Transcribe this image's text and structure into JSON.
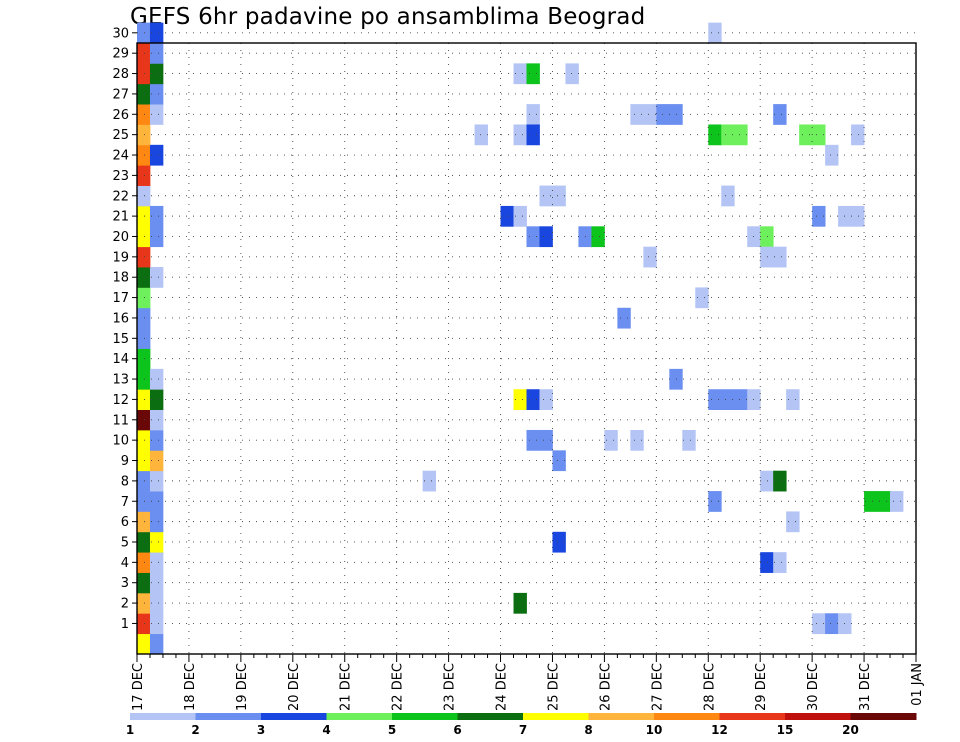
{
  "chart_data": {
    "type": "heatmap",
    "title": "GEFS 6hr padavine po ansamblima Beograd",
    "xlabel": "",
    "ylabel": "",
    "x_ticks": [
      "17 DEC",
      "18 DEC",
      "19 DEC",
      "20 DEC",
      "21 DEC",
      "22 DEC",
      "23 DEC",
      "24 DEC",
      "25 DEC",
      "26 DEC",
      "27 DEC",
      "28 DEC",
      "29 DEC",
      "30 DEC",
      "31 DEC",
      "01 JAN"
    ],
    "y_ticks": [
      "1",
      "2",
      "3",
      "4",
      "5",
      "6",
      "7",
      "8",
      "9",
      "10",
      "11",
      "12",
      "13",
      "14",
      "15",
      "16",
      "17",
      "18",
      "19",
      "20",
      "21",
      "22",
      "23",
      "24",
      "25",
      "26",
      "27",
      "28",
      "29",
      "30"
    ],
    "xlim": [
      0,
      60
    ],
    "ylim": [
      0,
      30
    ],
    "x_step_hours": 6,
    "grid": true,
    "colorbar": {
      "labels": [
        "1",
        "2",
        "3",
        "4",
        "5",
        "6",
        "7",
        "8",
        "10",
        "12",
        "15",
        "20"
      ],
      "colors": [
        "#b4c5f5",
        "#6b8ff0",
        "#1a46e0",
        "#6ef05c",
        "#0dc41c",
        "#0b6e10",
        "#ffff00",
        "#ffb43c",
        "#ff8812",
        "#e8361a",
        "#c0100e",
        "#6a0808"
      ]
    },
    "cells": [
      {
        "x": 0,
        "y": 0,
        "v": 7
      },
      {
        "x": 1,
        "y": 0,
        "v": 2
      },
      {
        "x": 0,
        "y": 1,
        "v": 13
      },
      {
        "x": 1,
        "y": 1,
        "v": 1
      },
      {
        "x": 0,
        "y": 2,
        "v": 9
      },
      {
        "x": 1,
        "y": 2,
        "v": 1
      },
      {
        "x": 0,
        "y": 3,
        "v": 6
      },
      {
        "x": 1,
        "y": 3,
        "v": 1
      },
      {
        "x": 0,
        "y": 4,
        "v": 11
      },
      {
        "x": 1,
        "y": 4,
        "v": 1
      },
      {
        "x": 0,
        "y": 5,
        "v": 6
      },
      {
        "x": 1,
        "y": 5,
        "v": 7
      },
      {
        "x": 0,
        "y": 6,
        "v": 9
      },
      {
        "x": 1,
        "y": 6,
        "v": 2
      },
      {
        "x": 0,
        "y": 7,
        "v": 2
      },
      {
        "x": 1,
        "y": 7,
        "v": 2
      },
      {
        "x": 0,
        "y": 8,
        "v": 2
      },
      {
        "x": 1,
        "y": 8,
        "v": 1
      },
      {
        "x": 0,
        "y": 9,
        "v": 7
      },
      {
        "x": 1,
        "y": 9,
        "v": 9
      },
      {
        "x": 0,
        "y": 10,
        "v": 7
      },
      {
        "x": 1,
        "y": 10,
        "v": 2
      },
      {
        "x": 0,
        "y": 11,
        "v": 25
      },
      {
        "x": 1,
        "y": 11,
        "v": 1
      },
      {
        "x": 0,
        "y": 12,
        "v": 7
      },
      {
        "x": 1,
        "y": 12,
        "v": 6
      },
      {
        "x": 0,
        "y": 13,
        "v": 5
      },
      {
        "x": 1,
        "y": 13,
        "v": 1
      },
      {
        "x": 0,
        "y": 14,
        "v": 5
      },
      {
        "x": 0,
        "y": 15,
        "v": 2
      },
      {
        "x": 0,
        "y": 16,
        "v": 2
      },
      {
        "x": 0,
        "y": 17,
        "v": 4
      },
      {
        "x": 0,
        "y": 18,
        "v": 6
      },
      {
        "x": 1,
        "y": 18,
        "v": 1
      },
      {
        "x": 0,
        "y": 19,
        "v": 13
      },
      {
        "x": 0,
        "y": 20,
        "v": 7
      },
      {
        "x": 1,
        "y": 20,
        "v": 2
      },
      {
        "x": 0,
        "y": 21,
        "v": 7
      },
      {
        "x": 1,
        "y": 21,
        "v": 2
      },
      {
        "x": 0,
        "y": 22,
        "v": 1
      },
      {
        "x": 0,
        "y": 23,
        "v": 13
      },
      {
        "x": 0,
        "y": 24,
        "v": 11
      },
      {
        "x": 1,
        "y": 24,
        "v": 3
      },
      {
        "x": 0,
        "y": 25,
        "v": 9
      },
      {
        "x": 0,
        "y": 26,
        "v": 11
      },
      {
        "x": 1,
        "y": 26,
        "v": 1
      },
      {
        "x": 0,
        "y": 27,
        "v": 6
      },
      {
        "x": 1,
        "y": 27,
        "v": 2
      },
      {
        "x": 0,
        "y": 28,
        "v": 13
      },
      {
        "x": 1,
        "y": 28,
        "v": 6
      },
      {
        "x": 0,
        "y": 29,
        "v": 13
      },
      {
        "x": 1,
        "y": 29,
        "v": 2
      },
      {
        "x": 0,
        "y": 30,
        "v": 2
      },
      {
        "x": 1,
        "y": 30,
        "v": 3
      },
      {
        "x": 44,
        "y": 30,
        "v": 1
      },
      {
        "x": 29,
        "y": 28,
        "v": 1
      },
      {
        "x": 30,
        "y": 28,
        "v": 5
      },
      {
        "x": 33,
        "y": 28,
        "v": 1
      },
      {
        "x": 30,
        "y": 26,
        "v": 1
      },
      {
        "x": 38,
        "y": 26,
        "v": 1
      },
      {
        "x": 39,
        "y": 26,
        "v": 1
      },
      {
        "x": 40,
        "y": 26,
        "v": 2
      },
      {
        "x": 41,
        "y": 26,
        "v": 2
      },
      {
        "x": 49,
        "y": 26,
        "v": 2
      },
      {
        "x": 26,
        "y": 25,
        "v": 1
      },
      {
        "x": 29,
        "y": 25,
        "v": 1
      },
      {
        "x": 30,
        "y": 25,
        "v": 3
      },
      {
        "x": 44,
        "y": 25,
        "v": 5
      },
      {
        "x": 45,
        "y": 25,
        "v": 4
      },
      {
        "x": 46,
        "y": 25,
        "v": 4
      },
      {
        "x": 51,
        "y": 25,
        "v": 4
      },
      {
        "x": 52,
        "y": 25,
        "v": 4
      },
      {
        "x": 55,
        "y": 25,
        "v": 1
      },
      {
        "x": 53,
        "y": 24,
        "v": 1
      },
      {
        "x": 31,
        "y": 22,
        "v": 1
      },
      {
        "x": 32,
        "y": 22,
        "v": 1
      },
      {
        "x": 45,
        "y": 22,
        "v": 1
      },
      {
        "x": 28,
        "y": 21,
        "v": 3
      },
      {
        "x": 29,
        "y": 21,
        "v": 1
      },
      {
        "x": 52,
        "y": 21,
        "v": 2
      },
      {
        "x": 54,
        "y": 21,
        "v": 1
      },
      {
        "x": 55,
        "y": 21,
        "v": 1
      },
      {
        "x": 30,
        "y": 20,
        "v": 2
      },
      {
        "x": 31,
        "y": 20,
        "v": 3
      },
      {
        "x": 34,
        "y": 20,
        "v": 2
      },
      {
        "x": 35,
        "y": 20,
        "v": 5
      },
      {
        "x": 47,
        "y": 20,
        "v": 1
      },
      {
        "x": 48,
        "y": 20,
        "v": 4
      },
      {
        "x": 39,
        "y": 19,
        "v": 1
      },
      {
        "x": 48,
        "y": 19,
        "v": 1
      },
      {
        "x": 49,
        "y": 19,
        "v": 1
      },
      {
        "x": 43,
        "y": 17,
        "v": 1
      },
      {
        "x": 37,
        "y": 16,
        "v": 2
      },
      {
        "x": 41,
        "y": 13,
        "v": 2
      },
      {
        "x": 29,
        "y": 12,
        "v": 7
      },
      {
        "x": 30,
        "y": 12,
        "v": 3
      },
      {
        "x": 31,
        "y": 12,
        "v": 1
      },
      {
        "x": 44,
        "y": 12,
        "v": 2
      },
      {
        "x": 45,
        "y": 12,
        "v": 2
      },
      {
        "x": 46,
        "y": 12,
        "v": 2
      },
      {
        "x": 47,
        "y": 12,
        "v": 1
      },
      {
        "x": 50,
        "y": 12,
        "v": 1
      },
      {
        "x": 30,
        "y": 10,
        "v": 2
      },
      {
        "x": 31,
        "y": 10,
        "v": 2
      },
      {
        "x": 36,
        "y": 10,
        "v": 1
      },
      {
        "x": 38,
        "y": 10,
        "v": 1
      },
      {
        "x": 42,
        "y": 10,
        "v": 1
      },
      {
        "x": 32,
        "y": 9,
        "v": 2
      },
      {
        "x": 22,
        "y": 8,
        "v": 1
      },
      {
        "x": 48,
        "y": 8,
        "v": 1
      },
      {
        "x": 49,
        "y": 8,
        "v": 6
      },
      {
        "x": 44,
        "y": 7,
        "v": 2
      },
      {
        "x": 56,
        "y": 7,
        "v": 5
      },
      {
        "x": 57,
        "y": 7,
        "v": 5
      },
      {
        "x": 58,
        "y": 7,
        "v": 1
      },
      {
        "x": 50,
        "y": 6,
        "v": 1
      },
      {
        "x": 32,
        "y": 5,
        "v": 3
      },
      {
        "x": 48,
        "y": 4,
        "v": 3
      },
      {
        "x": 49,
        "y": 4,
        "v": 1
      },
      {
        "x": 29,
        "y": 2,
        "v": 6
      },
      {
        "x": 52,
        "y": 1,
        "v": 1
      },
      {
        "x": 53,
        "y": 1,
        "v": 2
      },
      {
        "x": 54,
        "y": 1,
        "v": 1
      }
    ]
  }
}
